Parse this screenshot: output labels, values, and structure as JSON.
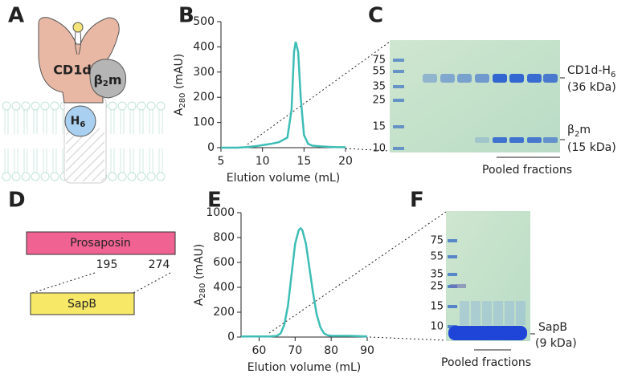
{
  "panel_labels": [
    "A",
    "B",
    "C",
    "D",
    "E",
    "F"
  ],
  "diagram_a": {
    "cd1d": "CD1d",
    "b2m": {
      "main": "β",
      "sub": "2",
      "rest": "m"
    },
    "his": {
      "main": "H",
      "sub": "6"
    }
  },
  "chart_data": [
    {
      "type": "line",
      "color": "#3dbdb5",
      "xlabel": "Elution volume (mL)",
      "ylabel": {
        "main": "A",
        "sub": "280",
        "rest": " (mAU)"
      },
      "x": [
        5,
        7,
        8,
        9,
        10,
        11,
        12,
        13,
        13.5,
        13.8,
        14,
        14.3,
        14.6,
        15,
        15.5,
        16,
        17,
        18,
        19,
        20
      ],
      "values": [
        0,
        0,
        2,
        5,
        10,
        15,
        22,
        40,
        150,
        380,
        420,
        380,
        200,
        50,
        15,
        8,
        5,
        3,
        2,
        2
      ],
      "xlim": [
        5,
        20
      ],
      "xticks": [
        5,
        10,
        15,
        20
      ],
      "ylim": [
        0,
        500
      ],
      "yticks": [
        0,
        100,
        200,
        300,
        400,
        500
      ]
    },
    {
      "type": "line",
      "color": "#3dbdb5",
      "xlabel": "Elution volume (mL)",
      "ylabel": {
        "main": "A",
        "sub": "280",
        "rest": " (mAU)"
      },
      "x": [
        55,
        60,
        63,
        65,
        66,
        67,
        68,
        69,
        70,
        71,
        71.5,
        72,
        73,
        74,
        75,
        76,
        77,
        78,
        79,
        80,
        85,
        90
      ],
      "values": [
        5,
        5,
        5,
        10,
        30,
        100,
        250,
        500,
        750,
        860,
        875,
        860,
        750,
        550,
        350,
        180,
        80,
        30,
        15,
        10,
        10,
        5
      ],
      "xlim": [
        55,
        90
      ],
      "xticks": [
        60,
        70,
        80,
        90
      ],
      "ylim": [
        0,
        1000
      ],
      "yticks": [
        0,
        200,
        400,
        600,
        800,
        1000
      ]
    }
  ],
  "gel_c": {
    "ladder": [
      "75",
      "55",
      "35",
      "25",
      "15",
      "10"
    ],
    "band_1": {
      "main": "CD1d-H",
      "sub": "6"
    },
    "band_1_size": "(36 kDa)",
    "band_2": {
      "main": "β",
      "sub": "2",
      "rest": "m"
    },
    "band_2_size": "(15 kDa)",
    "pooled": "Pooled fractions"
  },
  "diagram_d": {
    "protein": "Prosaposin",
    "start": "195",
    "end": "274",
    "fragment": "SapB"
  },
  "gel_f": {
    "ladder": [
      "75",
      "55",
      "35",
      "25",
      "15",
      "10"
    ],
    "band": "SapB",
    "band_size": "(9 kDa)",
    "pooled": "Pooled fractions"
  }
}
